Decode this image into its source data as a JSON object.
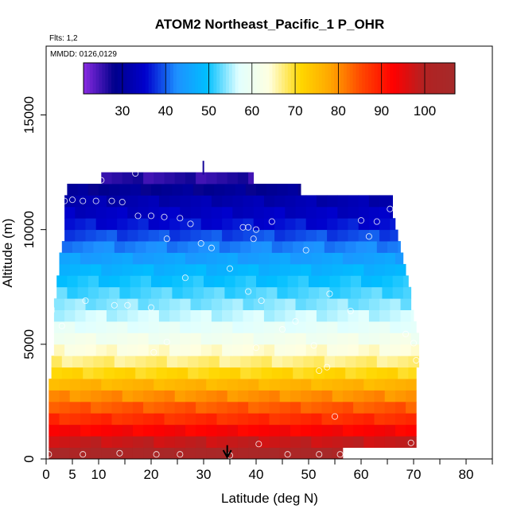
{
  "chart_data": {
    "type": "heatmap",
    "title": "ATOM2 Northeast_Pacific_1 P_OHR",
    "annotations": [
      "Flts: 1,2",
      "MMDD: 0126,0129"
    ],
    "xlabel": "Latitude (deg N)",
    "ylabel": "Altitude (m)",
    "xlim": [
      0,
      85
    ],
    "ylim": [
      0,
      18000
    ],
    "x_ticks": [
      0,
      5,
      10,
      20,
      30,
      40,
      50,
      60,
      70,
      80
    ],
    "y_ticks": [
      0,
      5000,
      10000,
      15000
    ],
    "colorbar": {
      "ticks": [
        30,
        40,
        50,
        60,
        70,
        80,
        90,
        100
      ],
      "range": [
        21,
        107
      ],
      "colors": [
        "#8a2be2",
        "#00008b",
        "#0000cd",
        "#1e90ff",
        "#00bfff",
        "#e0ffff",
        "#ffffe0",
        "#ffd700",
        "#ffa500",
        "#ff4500",
        "#ff0000",
        "#b22222",
        "#a52a2a"
      ]
    },
    "rows": [
      {
        "alt": 250,
        "x0": 0.5,
        "x1": 56.5,
        "value": 104
      },
      {
        "alt": 750,
        "x0": 0.5,
        "x1": 70.5,
        "value": 98
      },
      {
        "alt": 1250,
        "x0": 0.5,
        "x1": 70.5,
        "value": 93
      },
      {
        "alt": 1750,
        "x0": 0.5,
        "x1": 70.5,
        "value": 88
      },
      {
        "alt": 2250,
        "x0": 0.5,
        "x1": 70.5,
        "value": 84
      },
      {
        "alt": 2750,
        "x0": 0.5,
        "x1": 70.5,
        "value": 80
      },
      {
        "alt": 3250,
        "x0": 0.5,
        "x1": 70.5,
        "value": 76
      },
      {
        "alt": 3750,
        "x0": 1.0,
        "x1": 70.5,
        "value": 71
      },
      {
        "alt": 4250,
        "x0": 1.0,
        "x1": 71.0,
        "value": 67
      },
      {
        "alt": 4750,
        "x0": 1.5,
        "x1": 71.0,
        "value": 64
      },
      {
        "alt": 5250,
        "x0": 1.5,
        "x1": 71.0,
        "value": 61
      },
      {
        "alt": 5750,
        "x0": 1.5,
        "x1": 70.5,
        "value": 58
      },
      {
        "alt": 6250,
        "x0": 1.5,
        "x1": 70.0,
        "value": 56
      },
      {
        "alt": 6750,
        "x0": 1.5,
        "x1": 69.5,
        "value": 54
      },
      {
        "alt": 7250,
        "x0": 2.0,
        "x1": 69.5,
        "value": 52
      },
      {
        "alt": 7750,
        "x0": 2.0,
        "x1": 69.0,
        "value": 50
      },
      {
        "alt": 8250,
        "x0": 2.5,
        "x1": 68.5,
        "value": 48
      },
      {
        "alt": 8750,
        "x0": 2.5,
        "x1": 68.0,
        "value": 45
      },
      {
        "alt": 9250,
        "x0": 3.0,
        "x1": 67.5,
        "value": 42
      },
      {
        "alt": 9750,
        "x0": 3.5,
        "x1": 67.0,
        "value": 39
      },
      {
        "alt": 10250,
        "x0": 3.5,
        "x1": 66.5,
        "value": 36
      },
      {
        "alt": 10750,
        "x0": 3.5,
        "x1": 66.0,
        "value": 34
      },
      {
        "alt": 11250,
        "x0": 3.5,
        "x1": 66.0,
        "value": 32
      },
      {
        "alt": 11750,
        "x0": 4.0,
        "x1": 48.5,
        "value": 29
      },
      {
        "alt": 12250,
        "x0": 10.5,
        "x1": 39.5,
        "value": 26
      }
    ],
    "points": [
      [
        0.5,
        200
      ],
      [
        7,
        200
      ],
      [
        14,
        250
      ],
      [
        21,
        200
      ],
      [
        25.5,
        200
      ],
      [
        35,
        150
      ],
      [
        46,
        200
      ],
      [
        52,
        200
      ],
      [
        56,
        200
      ],
      [
        40.5,
        650
      ],
      [
        69.5,
        700
      ],
      [
        55,
        1850
      ],
      [
        52,
        3850
      ],
      [
        53.5,
        4000
      ],
      [
        70.5,
        4300
      ],
      [
        20.5,
        4650
      ],
      [
        23,
        5100
      ],
      [
        40,
        4850
      ],
      [
        51,
        4950
      ],
      [
        70,
        5050
      ],
      [
        68.5,
        5450
      ],
      [
        45,
        5650
      ],
      [
        47.5,
        6000
      ],
      [
        3,
        5800
      ],
      [
        1,
        6450
      ],
      [
        1,
        6550
      ],
      [
        7.5,
        6900
      ],
      [
        13,
        6700
      ],
      [
        15.5,
        6700
      ],
      [
        20,
        6600
      ],
      [
        58,
        6450
      ],
      [
        54,
        7200
      ],
      [
        41,
        6900
      ],
      [
        38.5,
        7300
      ],
      [
        26.5,
        7900
      ],
      [
        35,
        8300
      ],
      [
        23,
        9600
      ],
      [
        29.5,
        9400
      ],
      [
        31.5,
        9200
      ],
      [
        39.5,
        9600
      ],
      [
        49.5,
        9100
      ],
      [
        37.5,
        10100
      ],
      [
        38.5,
        10100
      ],
      [
        40,
        10000
      ],
      [
        43,
        10350
      ],
      [
        61.5,
        9700
      ],
      [
        17.5,
        10600
      ],
      [
        20,
        10600
      ],
      [
        22.5,
        10550
      ],
      [
        25.5,
        10500
      ],
      [
        27.5,
        10250
      ],
      [
        60,
        10400
      ],
      [
        63,
        10350
      ],
      [
        3.5,
        11250
      ],
      [
        5,
        11300
      ],
      [
        7,
        11250
      ],
      [
        9.5,
        11250
      ],
      [
        12.5,
        11250
      ],
      [
        14.5,
        11200
      ],
      [
        65.5,
        10900
      ],
      [
        17,
        12450
      ],
      [
        10.5,
        12150
      ]
    ],
    "marker_latitude": 34.5
  }
}
